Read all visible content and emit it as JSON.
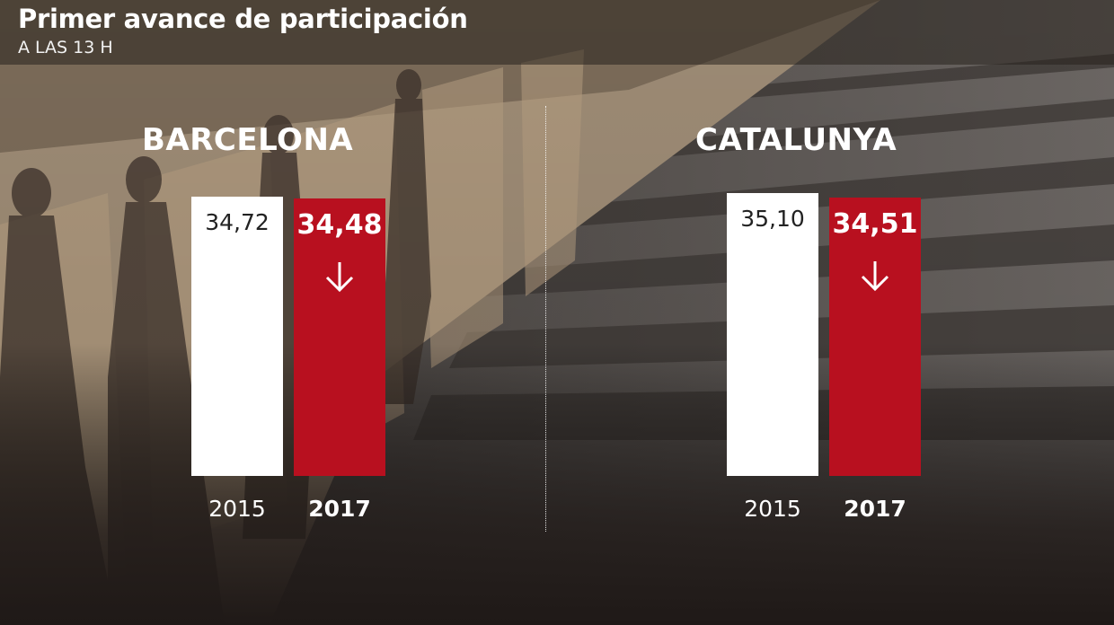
{
  "header": {
    "title": "Primer avance de participación",
    "subtitle": "A LAS 13 H"
  },
  "colors": {
    "bar_2015": "#ffffff",
    "bar_2017": "#b8101f",
    "decrease_arrow": "#ffffff"
  },
  "icons": {
    "decrease": "arrow-down-icon"
  },
  "chart_data": [
    {
      "type": "bar",
      "title": "BARCELONA",
      "categories": [
        "2015",
        "2017"
      ],
      "values": [
        34.72,
        34.48
      ],
      "value_labels": [
        "34,72",
        "34,48"
      ],
      "ylim": [
        0,
        40
      ],
      "trend": "down"
    },
    {
      "type": "bar",
      "title": "CATALUNYA",
      "categories": [
        "2015",
        "2017"
      ],
      "values": [
        35.1,
        34.51
      ],
      "value_labels": [
        "35,10",
        "34,51"
      ],
      "ylim": [
        0,
        40
      ],
      "trend": "down"
    }
  ]
}
